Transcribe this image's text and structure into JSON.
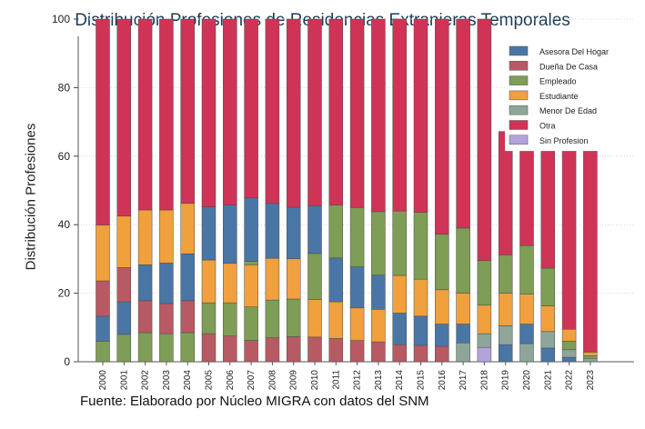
{
  "chart_data": {
    "type": "bar",
    "stacked": true,
    "title": "Distribución Profesiones de Residencias Extranjeras Temporales",
    "ylabel": "Distribución Profesiones",
    "xlabel": "",
    "source": "Fuente: Elaborado por Núcleo MIGRA con datos del SNM",
    "ylim": [
      0,
      100
    ],
    "yticks": [
      0,
      20,
      40,
      60,
      80,
      100
    ],
    "grid": true,
    "legend_position": "top-right",
    "categories": [
      "2000",
      "2001",
      "2002",
      "2003",
      "2004",
      "2005",
      "2006",
      "2007",
      "2008",
      "2009",
      "2010",
      "2011",
      "2012",
      "2013",
      "2014",
      "2015",
      "2016",
      "2017",
      "2018",
      "2019",
      "2020",
      "2021",
      "2022",
      "2023"
    ],
    "series": [
      {
        "name": "Asesora Del Hogar",
        "color": "#4a76a6",
        "values": [
          0,
          0,
          0,
          0,
          0,
          0,
          0,
          0,
          0,
          0,
          0,
          0,
          0,
          0,
          0,
          0,
          0,
          0,
          0,
          0,
          0,
          0,
          0,
          0
        ]
      },
      {
        "name": "Dueña De Casa",
        "color": "#b85a63",
        "values": [
          0,
          0,
          0,
          0,
          0,
          0,
          0,
          0,
          0,
          0,
          0,
          0,
          0,
          0,
          0,
          0,
          0,
          0,
          0,
          0,
          0,
          0,
          0,
          0
        ]
      },
      {
        "name": "Empleado",
        "color": "#7e9d56",
        "values": [
          0,
          0,
          0,
          0,
          0,
          0,
          0,
          0,
          0,
          0,
          0,
          0,
          0,
          0,
          0,
          0,
          0,
          0,
          0,
          0,
          0,
          0,
          0,
          0
        ]
      },
      {
        "name": "Estudiante",
        "color": "#f0a03c",
        "values": [
          0,
          0,
          0,
          0,
          0,
          0,
          0,
          0,
          0,
          0,
          0,
          0,
          0,
          0,
          0,
          0,
          0,
          0,
          0,
          0,
          0,
          0,
          0,
          0
        ]
      },
      {
        "name": "Menor De Edad",
        "color": "#8ea59a",
        "values": [
          0,
          0,
          0,
          0,
          0,
          0,
          0,
          0,
          0,
          0,
          0,
          0,
          0,
          0,
          0,
          0,
          0,
          0,
          0,
          0,
          0,
          0,
          0,
          0
        ]
      },
      {
        "name": "Otra",
        "color": "#cf3456",
        "values": [
          0,
          0,
          0,
          0,
          0,
          0,
          0,
          0,
          0,
          0,
          0,
          0,
          0,
          0,
          0,
          0,
          0,
          0,
          0,
          0,
          0,
          0,
          0,
          0
        ]
      },
      {
        "name": "Sin Profesion",
        "color": "#b3a3dd",
        "values": [
          0,
          0,
          0,
          0,
          0,
          0,
          0,
          0,
          0,
          0,
          0,
          0,
          0,
          0,
          0,
          0,
          0,
          0,
          0,
          0,
          0,
          0,
          0,
          0
        ]
      }
    ],
    "stacks": [
      [
        [
          "Empleado",
          6
        ],
        [
          "Asesora Del Hogar",
          7.3
        ],
        [
          "Dueña De Casa",
          10.3
        ],
        [
          "Estudiante",
          16.3
        ],
        [
          "Otra",
          60.1
        ]
      ],
      [
        [
          "Empleado",
          8
        ],
        [
          "Asesora Del Hogar",
          9.5
        ],
        [
          "Dueña De Casa",
          10
        ],
        [
          "Estudiante",
          15
        ],
        [
          "Otra",
          57.5
        ]
      ],
      [
        [
          "Empleado",
          8.5
        ],
        [
          "Dueña De Casa",
          9.3
        ],
        [
          "Asesora Del Hogar",
          10.5
        ],
        [
          "Estudiante",
          16
        ],
        [
          "Otra",
          55.7
        ]
      ],
      [
        [
          "Empleado",
          8.2
        ],
        [
          "Dueña De Casa",
          8.8
        ],
        [
          "Asesora Del Hogar",
          11.8
        ],
        [
          "Estudiante",
          15.5
        ],
        [
          "Otra",
          55.7
        ]
      ],
      [
        [
          "Empleado",
          8.5
        ],
        [
          "Dueña De Casa",
          9.3
        ],
        [
          "Asesora Del Hogar",
          13.7
        ],
        [
          "Estudiante",
          14.7
        ],
        [
          "Otra",
          53.8
        ]
      ],
      [
        [
          "Dueña De Casa",
          8.2
        ],
        [
          "Empleado",
          9
        ],
        [
          "Estudiante",
          12.5
        ],
        [
          "Asesora Del Hogar",
          15.5
        ],
        [
          "Otra",
          54.8
        ]
      ],
      [
        [
          "Dueña De Casa",
          7.5
        ],
        [
          "Empleado",
          9.7
        ],
        [
          "Estudiante",
          11.5
        ],
        [
          "Asesora Del Hogar",
          17
        ],
        [
          "Otra",
          54.3
        ]
      ],
      [
        [
          "Dueña De Casa",
          6.2
        ],
        [
          "Empleado",
          9.8
        ],
        [
          "Estudiante",
          12.3
        ],
        [
          "Empleado",
          1
        ],
        [
          "Asesora Del Hogar",
          18.5
        ],
        [
          "Otra",
          52.2
        ]
      ],
      [
        [
          "Dueña De Casa",
          7
        ],
        [
          "Empleado",
          11
        ],
        [
          "Estudiante",
          12.2
        ],
        [
          "Asesora Del Hogar",
          16
        ],
        [
          "Otra",
          53.8
        ]
      ],
      [
        [
          "Dueña De Casa",
          7.3
        ],
        [
          "Empleado",
          11
        ],
        [
          "Estudiante",
          11.8
        ],
        [
          "Asesora Del Hogar",
          15
        ],
        [
          "Otra",
          54.9
        ]
      ],
      [
        [
          "Dueña De Casa",
          7.2
        ],
        [
          "Estudiante",
          11
        ],
        [
          "Empleado",
          13.4
        ],
        [
          "Asesora Del Hogar",
          13.9
        ],
        [
          "Otra",
          54.5
        ]
      ],
      [
        [
          "Dueña De Casa",
          6.8
        ],
        [
          "Estudiante",
          10.7
        ],
        [
          "Asesora Del Hogar",
          12.8
        ],
        [
          "Empleado",
          15.4
        ],
        [
          "Otra",
          54.3
        ]
      ],
      [
        [
          "Dueña De Casa",
          6.2
        ],
        [
          "Estudiante",
          9.5
        ],
        [
          "Asesora Del Hogar",
          12
        ],
        [
          "Empleado",
          17.3
        ],
        [
          "Otra",
          55
        ]
      ],
      [
        [
          "Dueña De Casa",
          5.8
        ],
        [
          "Estudiante",
          9.5
        ],
        [
          "Asesora Del Hogar",
          10
        ],
        [
          "Empleado",
          18.5
        ],
        [
          "Otra",
          56.2
        ]
      ],
      [
        [
          "Dueña De Casa",
          5
        ],
        [
          "Asesora Del Hogar",
          9.2
        ],
        [
          "Estudiante",
          11
        ],
        [
          "Empleado",
          18.8
        ],
        [
          "Otra",
          56
        ]
      ],
      [
        [
          "Dueña De Casa",
          4.8
        ],
        [
          "Asesora Del Hogar",
          8.5
        ],
        [
          "Estudiante",
          10.8
        ],
        [
          "Empleado",
          19.5
        ],
        [
          "Otra",
          56.4
        ]
      ],
      [
        [
          "Dueña De Casa",
          4.5
        ],
        [
          "Asesora Del Hogar",
          6.5
        ],
        [
          "Estudiante",
          10
        ],
        [
          "Empleado",
          16.2
        ],
        [
          "Otra",
          62.8
        ]
      ],
      [
        [
          "Menor De Edad",
          5.5
        ],
        [
          "Asesora Del Hogar",
          5.5
        ],
        [
          "Estudiante",
          9
        ],
        [
          "Empleado",
          19
        ],
        [
          "Otra",
          61
        ]
      ],
      [
        [
          "Sin Profesion",
          4.2
        ],
        [
          "Menor De Edad",
          4
        ],
        [
          "Estudiante",
          8.3
        ],
        [
          "Empleado",
          13
        ],
        [
          "Otra",
          70.5
        ]
      ],
      [
        [
          "Asesora Del Hogar",
          5
        ],
        [
          "Menor De Edad",
          5.5
        ],
        [
          "Estudiante",
          9.5
        ],
        [
          "Empleado",
          11.2
        ],
        [
          "Otra",
          36
        ]
      ],
      [
        [
          "Menor De Edad",
          5.3
        ],
        [
          "Asesora Del Hogar",
          5.7
        ],
        [
          "Estudiante",
          8.7
        ],
        [
          "Empleado",
          14.2
        ],
        [
          "Otra",
          33.1
        ]
      ],
      [
        [
          "Asesora Del Hogar",
          4
        ],
        [
          "Menor De Edad",
          4.8
        ],
        [
          "Estudiante",
          7.5
        ],
        [
          "Empleado",
          11
        ],
        [
          "Otra",
          39.7
        ]
      ],
      [
        [
          "Asesora Del Hogar",
          1.3
        ],
        [
          "Menor De Edad",
          2.2
        ],
        [
          "Empleado",
          2.5
        ],
        [
          "Estudiante",
          3.5
        ],
        [
          "Otra",
          57.5
        ]
      ],
      [
        [
          "Menor De Edad",
          1
        ],
        [
          "Empleado",
          0.8
        ],
        [
          "Estudiante",
          1
        ],
        [
          "Otra",
          64.2
        ]
      ]
    ]
  }
}
